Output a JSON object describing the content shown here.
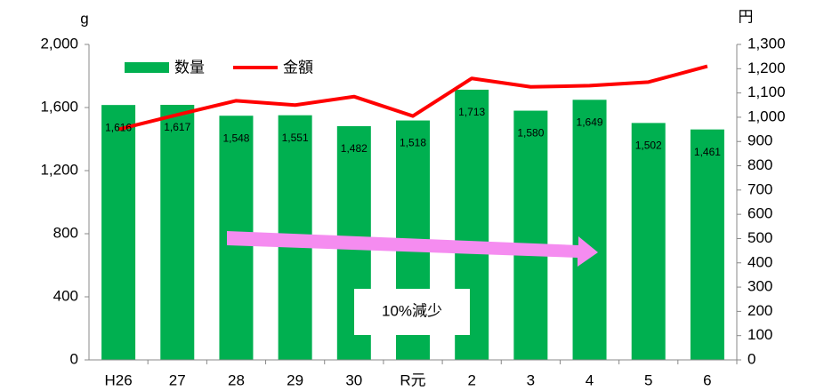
{
  "chart_data": {
    "type": "bar+line",
    "y_label": "g",
    "y2_label": "円",
    "annotation": "10%減少",
    "legend": "upper left",
    "categories": [
      "H26",
      "27",
      "28",
      "29",
      "30",
      "R元",
      "2",
      "3",
      "4",
      "5",
      "6"
    ],
    "series": [
      {
        "name": "数量",
        "type": "bar",
        "color": "#00b050",
        "axis": "y",
        "values": [
          1616,
          1617,
          1548,
          1551,
          1482,
          1518,
          1713,
          1580,
          1649,
          1502,
          1461
        ],
        "value_labels": [
          "1,616",
          "1,617",
          "1,548",
          "1,551",
          "1,482",
          "1,518",
          "1,713",
          "1,580",
          "1,649",
          "1,502",
          "1,461"
        ]
      },
      {
        "name": "金額",
        "type": "line",
        "color": "#ff0000",
        "axis": "y2",
        "values": [
          950,
          1010,
          1068,
          1050,
          1085,
          1005,
          1160,
          1125,
          1130,
          1145,
          1210
        ]
      }
    ],
    "ylim": [
      0,
      2000
    ],
    "yticks": [
      0,
      400,
      800,
      {
        "value": 1200,
        "label": "1,200"
      },
      {
        "value": 1600,
        "label": "1,600"
      },
      {
        "value": 2000,
        "label": "2,000"
      }
    ],
    "y2lim": [
      0,
      1300
    ],
    "y2ticks": [
      0,
      100,
      200,
      300,
      400,
      500,
      600,
      700,
      800,
      900,
      {
        "value": 1000,
        "label": "1,000"
      },
      {
        "value": 1100,
        "label": "1,100"
      },
      {
        "value": 1200,
        "label": "1,200"
      },
      {
        "value": 1300,
        "label": "1,300"
      }
    ]
  }
}
